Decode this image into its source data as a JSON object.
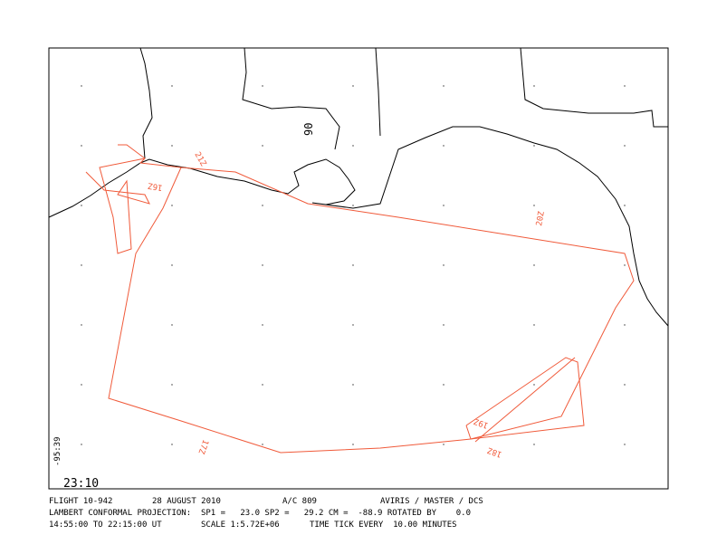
{
  "map": {
    "labels": {
      "longitude": "-95:39",
      "time_start": "23:10",
      "meridian": "90"
    },
    "track_labels": [
      "16Z",
      "17Z",
      "18Z",
      "19Z",
      "20Z",
      "21Z"
    ],
    "footer": {
      "line1": [
        "FLIGHT 10-942",
        "28 AUGUST 2010",
        "A/C 809",
        "AVIRIS / MASTER / DCS"
      ],
      "line2": "LAMBERT CONFORMAL PROJECTION:  SP1 =   23.0 SP2 =   29.2 CM =  -88.9 ROTATED BY    0.0",
      "line3": [
        "14:55:00 TO 22:15:00 UT",
        "SCALE 1:5.72E+06",
        "TIME TICK EVERY  10.00 MINUTES"
      ]
    }
  }
}
